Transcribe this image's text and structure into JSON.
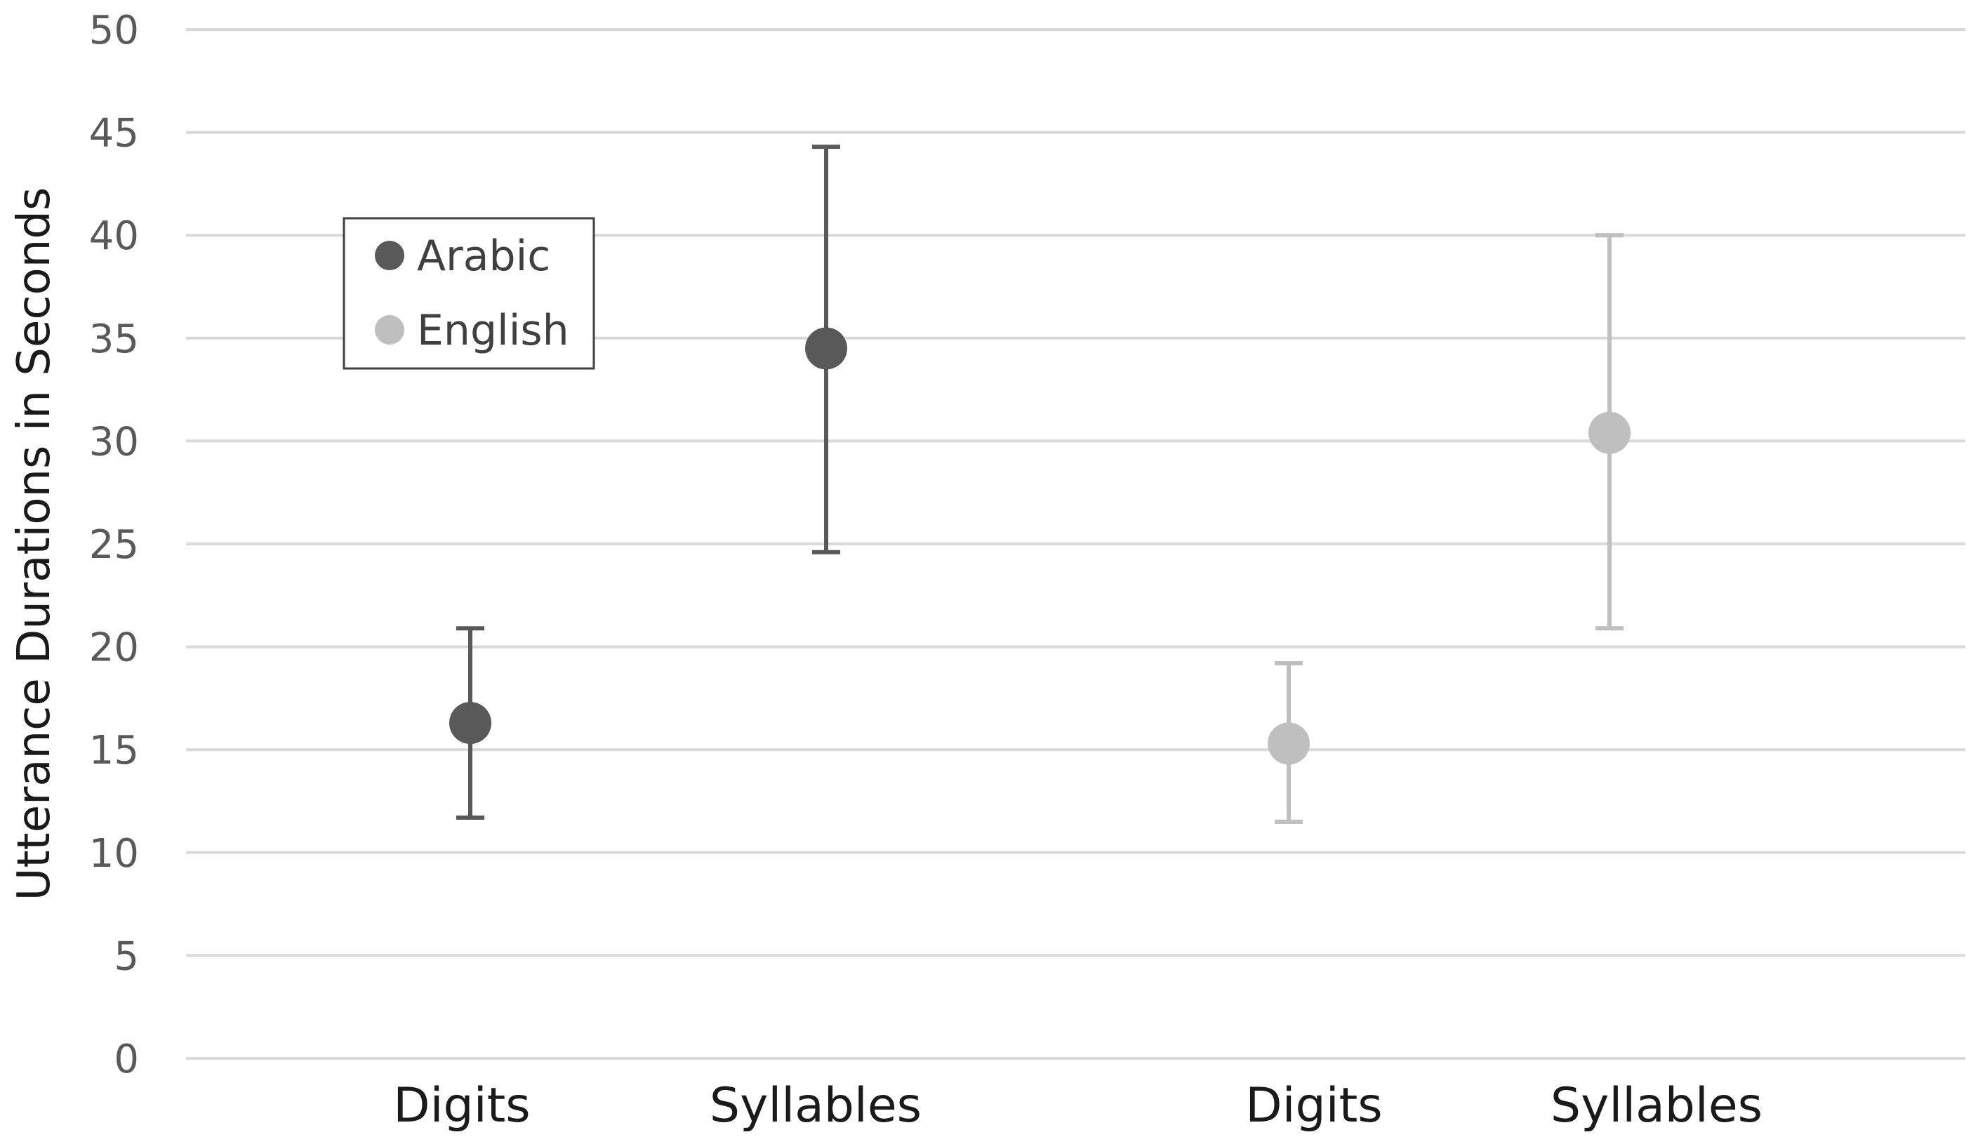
{
  "chart_data": {
    "type": "scatter",
    "title": "",
    "xlabel": "",
    "ylabel": "Utterance Durations in Seconds",
    "ylim": [
      0,
      50
    ],
    "yticks": [
      0,
      5,
      10,
      15,
      20,
      25,
      30,
      35,
      40,
      45,
      50
    ],
    "grid": true,
    "legend_position": "upper-left",
    "categories": [
      "Digits",
      "Syllables",
      "Digits",
      "Syllables"
    ],
    "series": [
      {
        "name": "Arabic",
        "color": "#595959",
        "points": [
          {
            "category_index": 0,
            "value": 16.3,
            "error_low": 11.7,
            "error_high": 20.9
          },
          {
            "category_index": 1,
            "value": 34.5,
            "error_low": 24.6,
            "error_high": 44.3
          }
        ]
      },
      {
        "name": "English",
        "color": "#bfbfbf",
        "points": [
          {
            "category_index": 2,
            "value": 15.3,
            "error_low": 11.5,
            "error_high": 19.2
          },
          {
            "category_index": 3,
            "value": 30.4,
            "error_low": 20.9,
            "error_high": 40.0
          }
        ]
      }
    ]
  }
}
